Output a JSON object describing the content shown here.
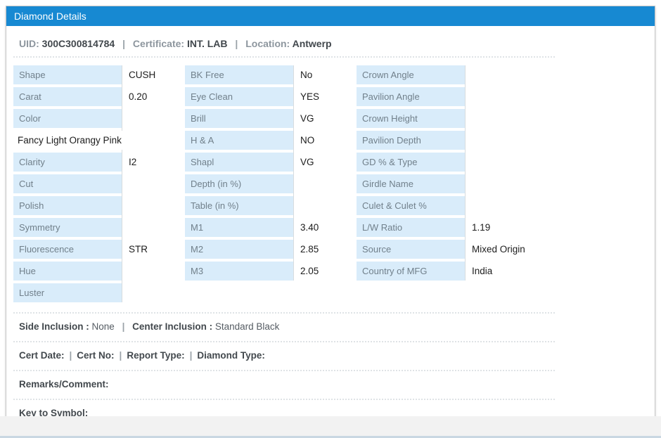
{
  "header": {
    "title": "Diamond Details"
  },
  "summary": {
    "uid_label": "UID:",
    "uid_value": "300C300814784",
    "certificate_label": "Certificate:",
    "certificate_value": "INT. LAB",
    "location_label": "Location:",
    "location_value": "Antwerp",
    "separator": "|"
  },
  "table": {
    "col1": [
      {
        "label": "Shape",
        "value": "CUSH"
      },
      {
        "label": "Carat",
        "value": "0.20"
      },
      {
        "label": "Color",
        "value": ""
      },
      {
        "full": "Fancy Light Orangy Pink"
      },
      {
        "label": "Clarity",
        "value": "I2"
      },
      {
        "label": "Cut",
        "value": ""
      },
      {
        "label": "Polish",
        "value": ""
      },
      {
        "label": "Symmetry",
        "value": ""
      },
      {
        "label": "Fluorescence",
        "value": "STR"
      },
      {
        "label": "Hue",
        "value": ""
      },
      {
        "label": "Luster",
        "value": ""
      }
    ],
    "col2": [
      {
        "label": "BK Free",
        "value": "No"
      },
      {
        "label": "Eye Clean",
        "value": "YES"
      },
      {
        "label": "Brill",
        "value": "VG"
      },
      {
        "label": "H & A",
        "value": "NO"
      },
      {
        "label": "Shapl",
        "value": "VG"
      },
      {
        "label": "Depth (in %)",
        "value": ""
      },
      {
        "label": "Table (in %)",
        "value": ""
      },
      {
        "label": "M1",
        "value": "3.40"
      },
      {
        "label": "M2",
        "value": "2.85"
      },
      {
        "label": "M3",
        "value": "2.05"
      }
    ],
    "col3": [
      {
        "label": "Crown Angle",
        "value": ""
      },
      {
        "label": "Pavilion Angle",
        "value": ""
      },
      {
        "label": "Crown Height",
        "value": ""
      },
      {
        "label": "Pavilion Depth",
        "value": ""
      },
      {
        "label": "GD % & Type",
        "value": ""
      },
      {
        "label": "Girdle Name",
        "value": ""
      },
      {
        "label": "Culet & Culet %",
        "value": ""
      },
      {
        "label": "L/W Ratio",
        "value": "1.19"
      },
      {
        "label": "Source",
        "value": "Mixed Origin"
      },
      {
        "label": "Country of MFG",
        "value": "India"
      }
    ]
  },
  "inclusion": {
    "side_label": "Side Inclusion",
    "colon": " : ",
    "side_value": "None",
    "separator": "|",
    "center_label": "Center Inclusion",
    "center_value": "Standard Black"
  },
  "cert": {
    "items": [
      "Cert Date:",
      "Cert No:",
      "Report Type:",
      "Diamond Type:"
    ],
    "separator": "|"
  },
  "remarks_label": "Remarks/Comment:",
  "key_label": "Key to Symbol:",
  "colors": {
    "header_bg": "#1789d2",
    "cell_bg": "#d9ecfa",
    "cell_label": "#71808b",
    "value_color": "#1c1c1c",
    "muted_label": "#8d969e",
    "strong_text": "#42484d",
    "sep_color": "#dfe3e6",
    "vline_color": "#d7dcdf",
    "strip_bg": "#f2f2f2",
    "strip_line": "#c9d7e2"
  }
}
